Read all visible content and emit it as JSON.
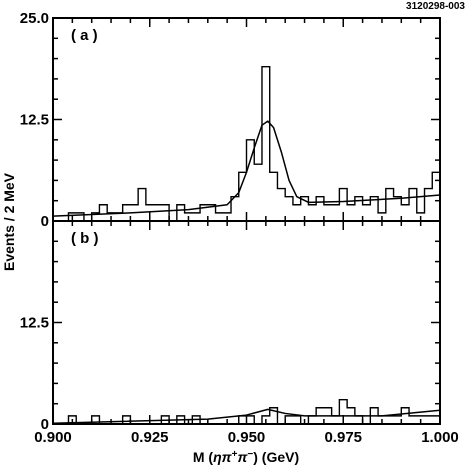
{
  "figure_id": "3120298-003",
  "chart_data": {
    "type": "histogram",
    "xlabel_prefix": "M (",
    "xlabel_suffix": ") (GeV)",
    "ylabel": "Events / 2 MeV",
    "xlim": [
      0.9,
      1.0
    ],
    "ylim": [
      0,
      25
    ],
    "x_ticks": [
      "0.900",
      "0.925",
      "0.950",
      "0.975",
      "1.000"
    ],
    "y_ticks": [
      "0",
      "12.5",
      "25.0"
    ],
    "bin_width": 0.002,
    "panels": [
      {
        "label": "( a )",
        "y_tick_labels": [
          "0",
          "12.5",
          "25.0"
        ],
        "bin_edges_start": 0.9,
        "counts": [
          0,
          0,
          1,
          1,
          0,
          1,
          2,
          1,
          1,
          2,
          2,
          4,
          2,
          2,
          2,
          0,
          2,
          1,
          1,
          2,
          2,
          1,
          1,
          3,
          6,
          10,
          7,
          19,
          6,
          4,
          3,
          2,
          3,
          2,
          3,
          2,
          2,
          4,
          2,
          3,
          2,
          3,
          1,
          4,
          3,
          2,
          4,
          1,
          4,
          6
        ],
        "fit": [
          [
            0.9,
            0.6
          ],
          [
            0.92,
            1.0
          ],
          [
            0.935,
            1.4
          ],
          [
            0.945,
            2.0
          ],
          [
            0.948,
            3.5
          ],
          [
            0.95,
            6.0
          ],
          [
            0.952,
            9.0
          ],
          [
            0.954,
            11.8
          ],
          [
            0.9555,
            12.3
          ],
          [
            0.957,
            11.5
          ],
          [
            0.959,
            8.5
          ],
          [
            0.961,
            5.0
          ],
          [
            0.963,
            3.0
          ],
          [
            0.966,
            2.3
          ],
          [
            0.975,
            2.4
          ],
          [
            0.99,
            2.8
          ],
          [
            1.0,
            3.2
          ]
        ]
      },
      {
        "label": "( b )",
        "y_tick_labels": [
          "0",
          "12.5",
          ""
        ],
        "bin_edges_start": 0.9,
        "counts": [
          0,
          0,
          1,
          0,
          0,
          1,
          0,
          0,
          0,
          1,
          0,
          0,
          0,
          0,
          1,
          0,
          1,
          0,
          1,
          0,
          0,
          0,
          0,
          0,
          1,
          1,
          0,
          1,
          2,
          0,
          1,
          1,
          0,
          1,
          2,
          2,
          1,
          3,
          2,
          1,
          0,
          2,
          1,
          1,
          1,
          2,
          1,
          1,
          1,
          1
        ],
        "fit": [
          [
            0.9,
            0.1
          ],
          [
            0.94,
            0.6
          ],
          [
            0.95,
            1.1
          ],
          [
            0.9555,
            1.8
          ],
          [
            0.96,
            1.3
          ],
          [
            0.965,
            1.0
          ],
          [
            0.985,
            1.0
          ],
          [
            1.0,
            1.7
          ]
        ]
      }
    ]
  }
}
